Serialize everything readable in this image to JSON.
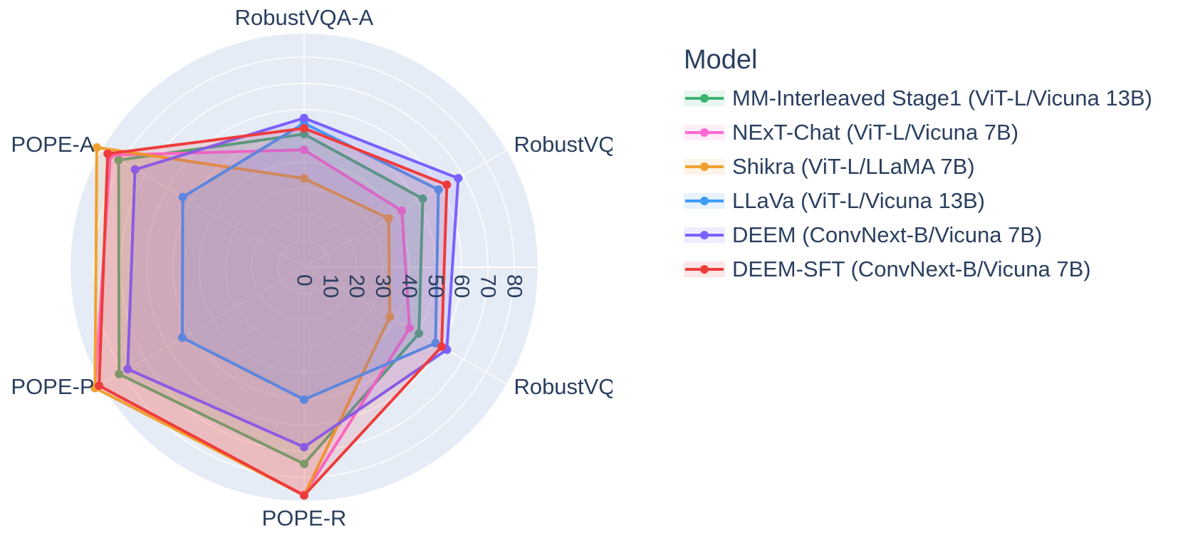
{
  "chart_data": {
    "type": "radar",
    "axes": [
      "RobustVQA-A",
      "RobustVQA-R",
      "RobustVQA-V",
      "POPE-R",
      "POPE-P",
      "POPE-A"
    ],
    "radial_range": [
      0,
      89
    ],
    "radial_ticks": [
      "0",
      "10",
      "20",
      "30",
      "40",
      "50",
      "60",
      "70",
      "80"
    ],
    "legend_title": "Model",
    "series": [
      {
        "name": "MM-Interleaved Stage1 (ViT-L/Vicuna 13B)",
        "color": "#3cb371",
        "values": [
          50.7,
          52.2,
          50.5,
          74.9,
          81.4,
          81.6
        ]
      },
      {
        "name": "NExT-Chat (ViT-L/Vicuna 7B)",
        "color": "#ff6ad5",
        "values": [
          44.7,
          43.0,
          46.4,
          86.7,
          92.0,
          85.3
        ]
      },
      {
        "name": "Shikra (ViT-L/LLaMA 7B)",
        "color": "#f0a030",
        "values": [
          33.8,
          37.2,
          37.7,
          86.9,
          92.0,
          91.2
        ]
      },
      {
        "name": "LLaVa (ViT-L/Vicuna 13B)",
        "color": "#3d9bfa",
        "values": [
          54.8,
          59.1,
          57.8,
          50.4,
          53.6,
          53.4
        ]
      },
      {
        "name": "DEEM (ConvNext-B/Vicuna 7B)",
        "color": "#7b61ff",
        "values": [
          56.8,
          67.8,
          62.8,
          68.5,
          77.6,
          74.4
        ]
      },
      {
        "name": "DEEM-SFT (ConvNext-B/Vicuna 7B)",
        "color": "#ee3c3c",
        "values": [
          52.9,
          62.8,
          60.5,
          86.9,
          90.2,
          86.4
        ]
      }
    ]
  }
}
